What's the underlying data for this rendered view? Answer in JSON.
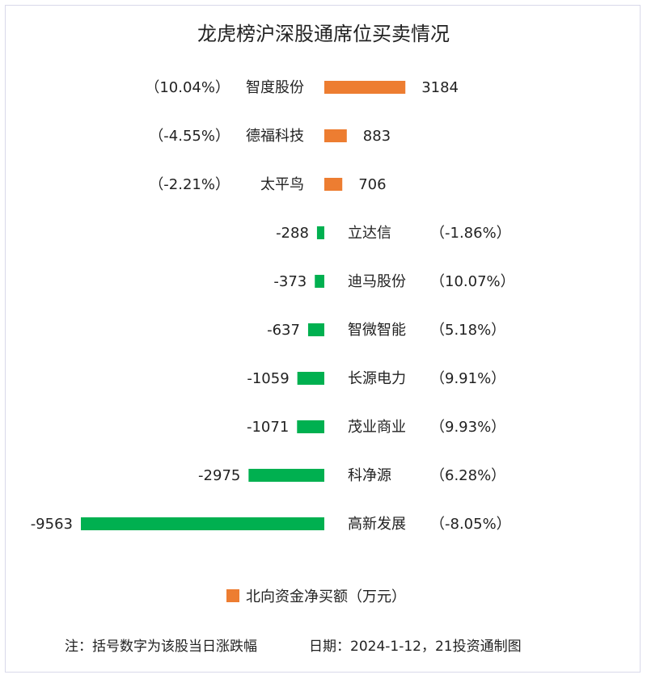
{
  "chart_data": {
    "type": "bar",
    "orientation": "horizontal",
    "title": "龙虎榜沪深股通席位买卖情况",
    "categories": [
      "智度股份",
      "德福科技",
      "太平鸟",
      "立达信",
      "迪马股份",
      "智微智能",
      "长源电力",
      "茂业商业",
      "科净源",
      "高新发展"
    ],
    "changes": [
      "（10.04%）",
      "（-4.55%）",
      "（-2.21%）",
      "（-1.86%）",
      "（10.07%）",
      "（5.18%）",
      "（9.91%）",
      "（9.93%）",
      "（6.28%）",
      "（-8.05%）"
    ],
    "series": [
      {
        "name": "北向资金净买额（万元）",
        "values": [
          3184,
          883,
          706,
          -288,
          -373,
          -637,
          -1059,
          -1071,
          -2975,
          -9563
        ]
      }
    ],
    "value_labels": [
      "3184",
      "883",
      "706",
      "-288",
      "-373",
      "-637",
      "-1059",
      "-1071",
      "-2975",
      "-9563"
    ],
    "legend_position": "bottom",
    "grid": false,
    "colors": {
      "positive": "#ED7D31",
      "negative": "#00B050"
    }
  },
  "footer": {
    "note": "注：括号数字为该股当日涨跌幅",
    "date": "日期：2024-1-12，21投资通制图"
  }
}
